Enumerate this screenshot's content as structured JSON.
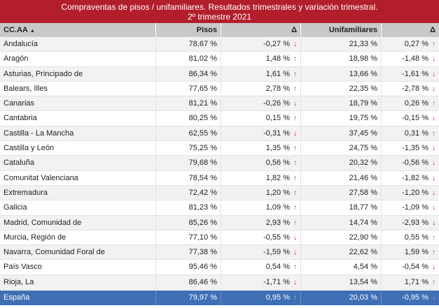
{
  "title": {
    "line1": "Compraventas de pisos / unifamiliares. Resultados trimestrales  y variación trimestral.",
    "line2": "2º trimestre 2021"
  },
  "header": {
    "region": "CC.AA",
    "sort_icon": "sort-ascending-icon",
    "pisos": "Pisos",
    "delta1": "Δ",
    "unifamiliares": "Unifamiliares",
    "delta2": "Δ"
  },
  "colors": {
    "title_bg": "#b21e2b",
    "total_bg": "#3f6fb5",
    "up": "#2a8a2a",
    "down": "#d0202a"
  },
  "rows": [
    {
      "region": "Andalucía",
      "pisos": "78,67 %",
      "d1": "-0,27 %",
      "d1dir": "down",
      "uni": "21,33 %",
      "d2": "0,27 %",
      "d2dir": "up"
    },
    {
      "region": "Aragón",
      "pisos": "81,02 %",
      "d1": "1,48 %",
      "d1dir": "up",
      "uni": "18,98 %",
      "d2": "-1,48 %",
      "d2dir": "down"
    },
    {
      "region": "Asturias, Principado de",
      "pisos": "86,34 %",
      "d1": "1,61 %",
      "d1dir": "up",
      "uni": "13,66 %",
      "d2": "-1,61 %",
      "d2dir": "down"
    },
    {
      "region": "Balears, Illes",
      "pisos": "77,65 %",
      "d1": "2,78 %",
      "d1dir": "up",
      "uni": "22,35 %",
      "d2": "-2,78 %",
      "d2dir": "down"
    },
    {
      "region": "Canarias",
      "pisos": "81,21 %",
      "d1": "-0,26 %",
      "d1dir": "down",
      "uni": "18,79 %",
      "d2": "0,26 %",
      "d2dir": "up"
    },
    {
      "region": "Cantabria",
      "pisos": "80,25 %",
      "d1": "0,15 %",
      "d1dir": "up",
      "uni": "19,75 %",
      "d2": "-0,15 %",
      "d2dir": "down"
    },
    {
      "region": "Castilla - La Mancha",
      "pisos": "62,55 %",
      "d1": "-0,31 %",
      "d1dir": "down",
      "uni": "37,45 %",
      "d2": "0,31 %",
      "d2dir": "up"
    },
    {
      "region": "Castilla y León",
      "pisos": "75,25 %",
      "d1": "1,35 %",
      "d1dir": "up",
      "uni": "24,75 %",
      "d2": "-1,35 %",
      "d2dir": "down"
    },
    {
      "region": "Cataluña",
      "pisos": "79,68 %",
      "d1": "0,56 %",
      "d1dir": "up",
      "uni": "20,32 %",
      "d2": "-0,56 %",
      "d2dir": "down"
    },
    {
      "region": "Comunitat Valenciana",
      "pisos": "78,54 %",
      "d1": "1,82 %",
      "d1dir": "up",
      "uni": "21,46 %",
      "d2": "-1,82 %",
      "d2dir": "down"
    },
    {
      "region": "Extremadura",
      "pisos": "72,42 %",
      "d1": "1,20 %",
      "d1dir": "up",
      "uni": "27,58 %",
      "d2": "-1,20 %",
      "d2dir": "down"
    },
    {
      "region": "Galicia",
      "pisos": "81,23 %",
      "d1": "1,09 %",
      "d1dir": "up",
      "uni": "18,77 %",
      "d2": "-1,09 %",
      "d2dir": "down"
    },
    {
      "region": "Madrid, Comunidad de",
      "pisos": "85,26 %",
      "d1": "2,93 %",
      "d1dir": "up",
      "uni": "14,74 %",
      "d2": "-2,93 %",
      "d2dir": "down"
    },
    {
      "region": "Murcia, Región de",
      "pisos": "77,10 %",
      "d1": "-0,55 %",
      "d1dir": "down",
      "uni": "22,90 %",
      "d2": "0,55 %",
      "d2dir": "up"
    },
    {
      "region": "Navarra, Comunidad Foral de",
      "pisos": "77,38 %",
      "d1": "-1,59 %",
      "d1dir": "down",
      "uni": "22,62 %",
      "d2": "1,59 %",
      "d2dir": "up"
    },
    {
      "region": "País Vasco",
      "pisos": "95,46 %",
      "d1": "0,54 %",
      "d1dir": "up",
      "uni": "4,54 %",
      "d2": "-0,54 %",
      "d2dir": "down"
    },
    {
      "region": "Rioja, La",
      "pisos": "86,46 %",
      "d1": "-1,71 %",
      "d1dir": "down",
      "uni": "13,54 %",
      "d2": "1,71 %",
      "d2dir": "up"
    }
  ],
  "total": {
    "region": "España",
    "pisos": "79,97 %",
    "d1": "0,95 %",
    "d1dir": "up",
    "uni": "20,03 %",
    "d2": "-0,95 %",
    "d2dir": "down"
  }
}
